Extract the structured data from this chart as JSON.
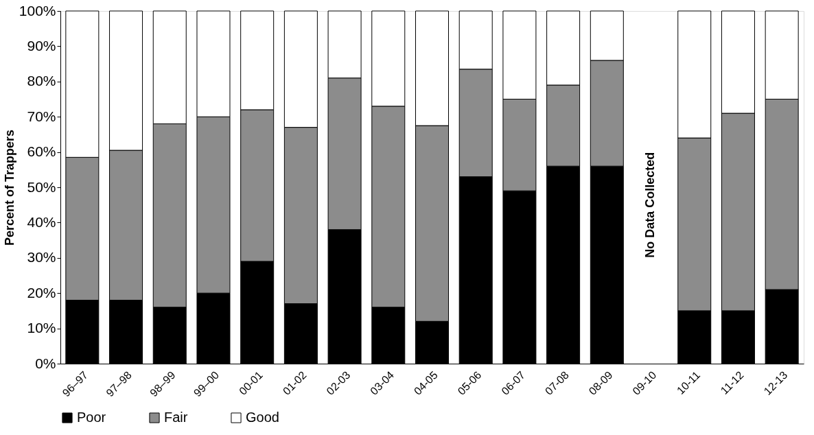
{
  "chart_data": {
    "type": "bar",
    "stacked": true,
    "ylabel": "Percent of Trappers",
    "categories": [
      "96–97",
      "97–98",
      "98–99",
      "99–00",
      "00-01",
      "01-02",
      "02-03",
      "03-04",
      "04-05",
      "05-06",
      "06-07",
      "07-08",
      "08-09",
      "09-10",
      "10-11",
      "11-12",
      "12-13"
    ],
    "series": [
      {
        "name": "Poor",
        "color": "#000000",
        "values": [
          18,
          18,
          16,
          20,
          29,
          17,
          38,
          16,
          12,
          53,
          49,
          56,
          56,
          null,
          15,
          15,
          21
        ]
      },
      {
        "name": "Fair",
        "color": "#8c8c8c",
        "values": [
          40.5,
          42.5,
          52,
          50,
          43,
          50,
          43,
          57,
          55.5,
          30.5,
          26,
          23,
          30,
          null,
          49,
          56,
          54
        ]
      },
      {
        "name": "Good",
        "color": "#ffffff",
        "values": [
          41.5,
          39.5,
          32,
          30,
          28,
          33,
          19,
          27,
          32.5,
          16.5,
          25,
          21,
          14,
          null,
          36,
          29,
          25
        ]
      }
    ],
    "ylim": [
      0,
      100
    ],
    "yticks": [
      {
        "value": 0,
        "label": "0%"
      },
      {
        "value": 10,
        "label": "10%"
      },
      {
        "value": 20,
        "label": "20%"
      },
      {
        "value": 30,
        "label": "30%"
      },
      {
        "value": 40,
        "label": "40%"
      },
      {
        "value": 50,
        "label": "50%"
      },
      {
        "value": 60,
        "label": "60%"
      },
      {
        "value": 70,
        "label": "70%"
      },
      {
        "value": 80,
        "label": "80%"
      },
      {
        "value": 90,
        "label": "90%"
      },
      {
        "value": 100,
        "label": "100%"
      }
    ],
    "annotations": [
      "No Data Collected"
    ],
    "legend": "bottom",
    "grid": false
  }
}
